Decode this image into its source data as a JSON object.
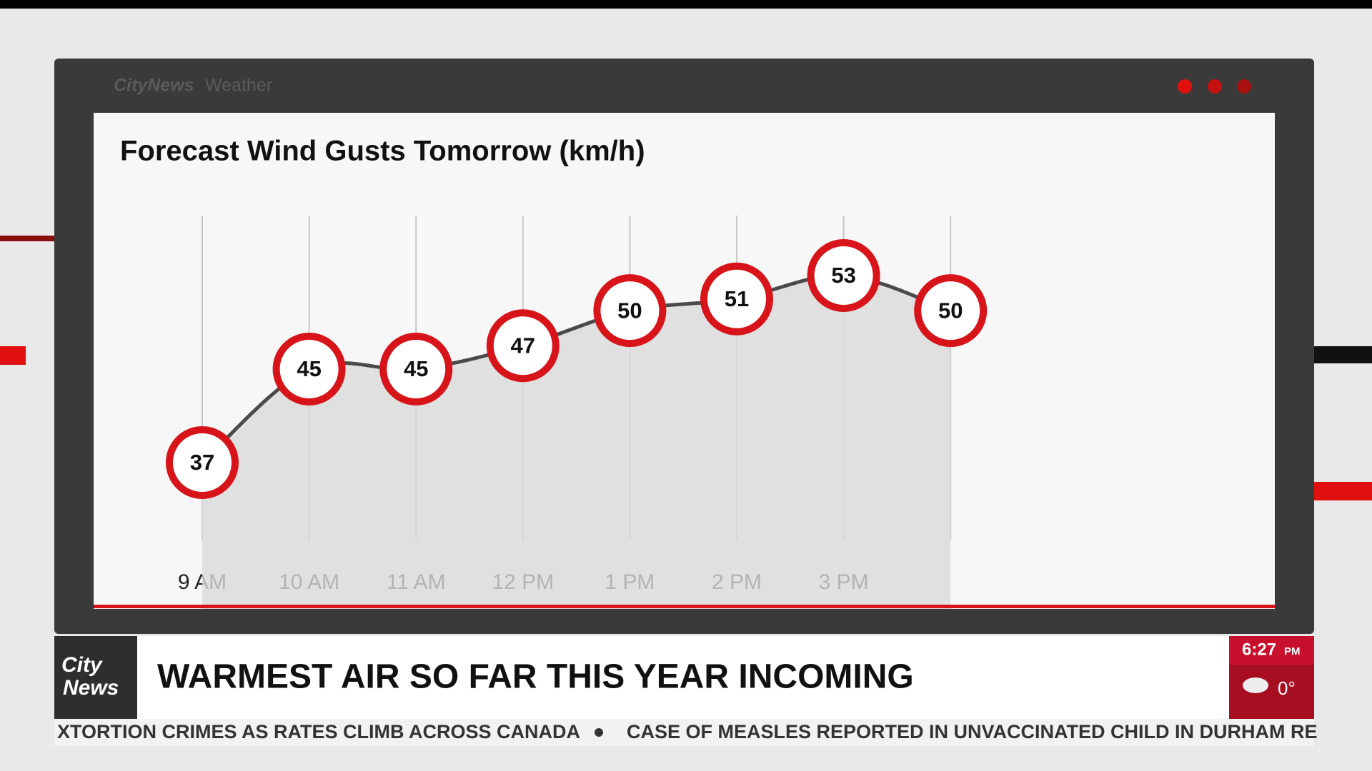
{
  "header": {
    "brand": "CityNews",
    "section": "Weather"
  },
  "chart_data": {
    "type": "line",
    "title": "Forecast Wind Gusts Tomorrow (km/h)",
    "categories": [
      "9 AM",
      "10 AM",
      "11 AM",
      "12 PM",
      "1 PM",
      "2 PM",
      "3 PM",
      null
    ],
    "values": [
      37,
      45,
      45,
      47,
      50,
      51,
      53,
      50
    ],
    "color": "#d7141a",
    "grid": true
  },
  "lower_third": {
    "logo_top": "City",
    "logo_bottom": "News",
    "headline": "WARMEST AIR SO FAR THIS YEAR INCOMING",
    "time": "6:27",
    "time_suffix": "PM",
    "temperature": "0°"
  },
  "ticker": [
    "XTORTION CRIMES AS RATES CLIMB ACROSS CANADA",
    "CASE OF MEASLES REPORTED IN UNVACCINATED CHILD IN DURHAM RE"
  ]
}
